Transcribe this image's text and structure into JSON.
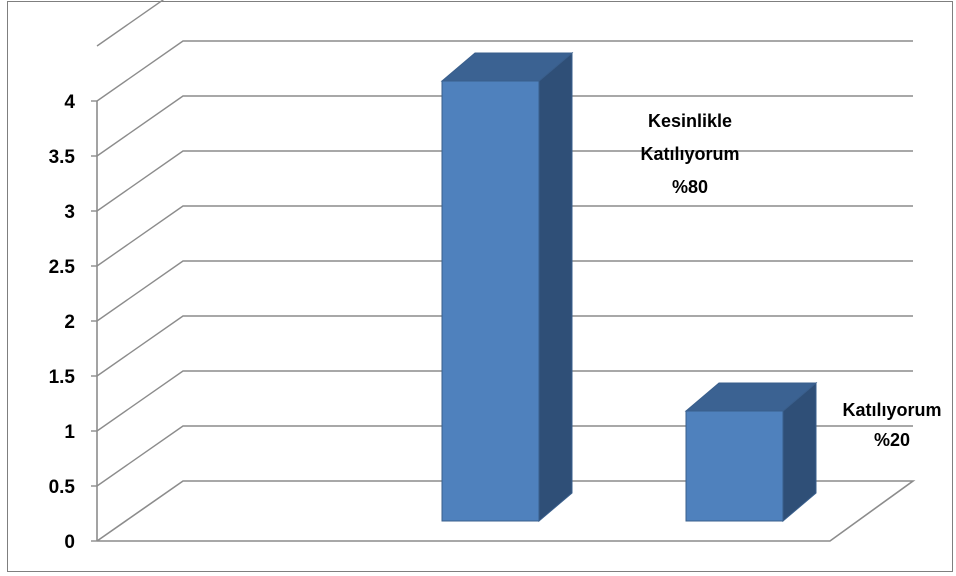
{
  "chart_data": {
    "type": "bar",
    "categories": [
      "Kesinlikle Katılıyorum",
      "Katılıyorum"
    ],
    "values": [
      4,
      1
    ],
    "ylim": [
      0,
      4.5
    ],
    "yticks": [
      "0",
      "0.5",
      "1",
      "1.5",
      "2",
      "2.5",
      "3",
      "3.5",
      "4"
    ],
    "grid": true,
    "legend": "none",
    "three_d": true,
    "data_labels": [
      [
        "Kesinlikle",
        "Katılıyorum",
        "%80"
      ],
      [
        "Katılıyorum",
        "%20"
      ]
    ],
    "colors": {
      "bar_front": "#4f81bd",
      "bar_side": "#2f4f77",
      "bar_top": "#3b6292",
      "bar_edge": "#3a5f8c",
      "grid": "#8c8c8c"
    }
  }
}
